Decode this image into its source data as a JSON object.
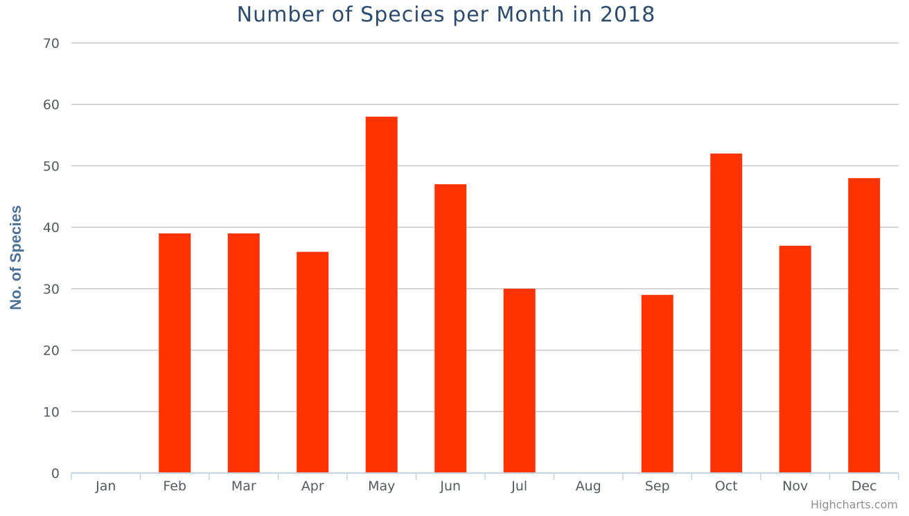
{
  "chart_data": {
    "type": "bar",
    "title": "Number of Species per Month in 2018",
    "xlabel": "",
    "ylabel": "No. of Species",
    "categories": [
      "Jan",
      "Feb",
      "Mar",
      "Apr",
      "May",
      "Jun",
      "Jul",
      "Aug",
      "Sep",
      "Oct",
      "Nov",
      "Dec"
    ],
    "values": [
      0,
      39,
      39,
      36,
      58,
      47,
      30,
      0,
      29,
      52,
      37,
      48
    ],
    "ylim": [
      0,
      70
    ],
    "yticks": [
      0,
      10,
      20,
      30,
      40,
      50,
      60,
      70
    ],
    "grid": true,
    "legend": "none",
    "credit": "Highcharts.com",
    "colors": {
      "bar": "#ff3300",
      "grid": "#c8c8c8",
      "title": "#2c4a6b",
      "ylabel": "#4e7196"
    }
  }
}
